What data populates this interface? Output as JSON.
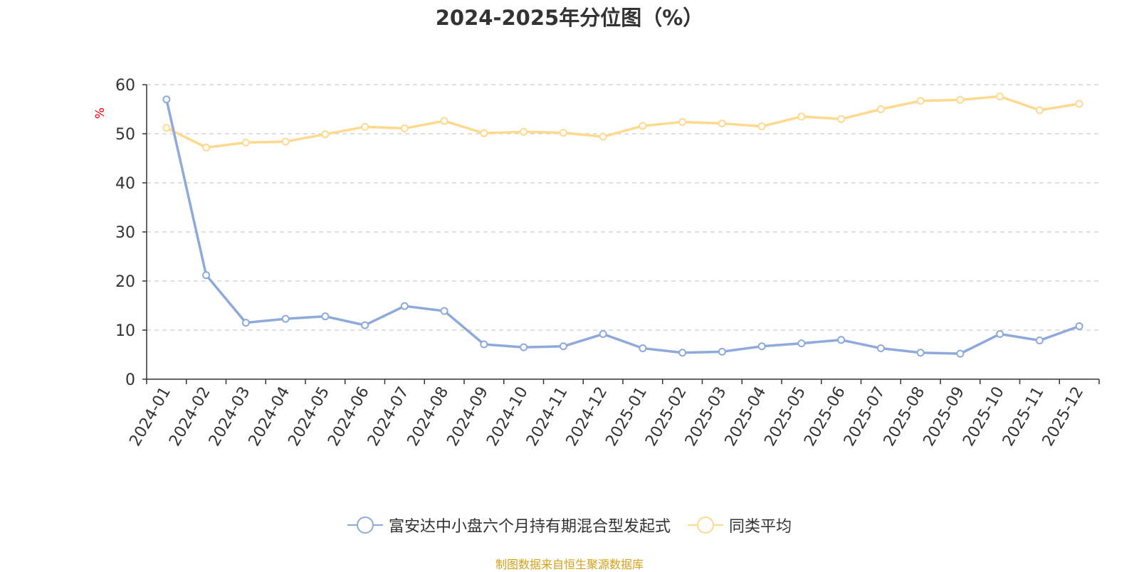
{
  "chart_data": {
    "type": "line",
    "title": "2024-2025年分位图（%）",
    "ylabel": "%",
    "xlabel": "",
    "ylim": [
      0,
      60
    ],
    "yticks": [
      "0",
      "10",
      "20",
      "30",
      "40",
      "50",
      "60"
    ],
    "grid": true,
    "legend_position": "bottom",
    "categories": [
      "2024-01",
      "2024-02",
      "2024-03",
      "2024-04",
      "2024-05",
      "2024-06",
      "2024-07",
      "2024-08",
      "2024-09",
      "2024-10",
      "2024-11",
      "2024-12",
      "2025-01",
      "2025-02",
      "2025-03",
      "2025-04",
      "2025-05",
      "2025-06",
      "2025-07",
      "2025-08",
      "2025-09",
      "2025-10",
      "2025-11",
      "2025-12"
    ],
    "series": [
      {
        "name": "富安达中小盘六个月持有期混合型发起式",
        "color": "#8eaadb",
        "values": [
          57.0,
          21.2,
          11.5,
          12.3,
          12.8,
          11.0,
          14.9,
          13.9,
          7.1,
          6.5,
          6.7,
          9.2,
          6.3,
          5.4,
          5.6,
          6.7,
          7.3,
          8.0,
          6.3,
          5.4,
          5.2,
          9.2,
          7.9,
          10.8
        ]
      },
      {
        "name": "同类平均",
        "color": "#ffd98e",
        "values": [
          51.2,
          47.2,
          48.2,
          48.4,
          49.9,
          51.4,
          51.1,
          52.6,
          50.1,
          50.4,
          50.2,
          49.4,
          51.6,
          52.4,
          52.1,
          51.5,
          53.5,
          53.0,
          55.0,
          56.7,
          56.9,
          57.6,
          54.8,
          56.1
        ]
      }
    ]
  },
  "source_note": "制图数据来自恒生聚源数据库"
}
